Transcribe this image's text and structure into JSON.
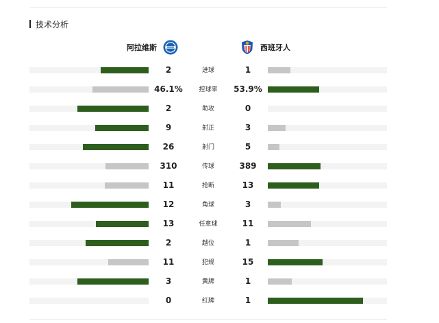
{
  "section": {
    "title": "技术分析"
  },
  "home": {
    "name": "阿拉维斯",
    "crest": "alaves-crest-icon",
    "color": "#1a63b5"
  },
  "away": {
    "name": "西班牙人",
    "crest": "espanyol-crest-icon",
    "color": "#1f56b0"
  },
  "colors": {
    "leader_bar": "#2e5e1e",
    "trailer_bar": "#c6c6c6",
    "track": "#f3f3f3"
  },
  "stats": [
    {
      "label": "进球",
      "home": "2",
      "away": "1",
      "home_share": 0.4,
      "away_share": 0.19
    },
    {
      "label": "控球率",
      "home": "46.1%",
      "away": "53.9%",
      "home_share": 0.47,
      "away_share": 0.43
    },
    {
      "label": "助攻",
      "home": "2",
      "away": "0",
      "home_share": 0.6,
      "away_share": 0.0
    },
    {
      "label": "射正",
      "home": "9",
      "away": "3",
      "home_share": 0.45,
      "away_share": 0.15
    },
    {
      "label": "射门",
      "home": "26",
      "away": "5",
      "home_share": 0.55,
      "away_share": 0.1
    },
    {
      "label": "传球",
      "home": "310",
      "away": "389",
      "home_share": 0.36,
      "away_share": 0.44
    },
    {
      "label": "抢断",
      "home": "11",
      "away": "13",
      "home_share": 0.37,
      "away_share": 0.43
    },
    {
      "label": "角球",
      "home": "12",
      "away": "3",
      "home_share": 0.65,
      "away_share": 0.11
    },
    {
      "label": "任意球",
      "home": "13",
      "away": "11",
      "home_share": 0.44,
      "away_share": 0.36
    },
    {
      "label": "越位",
      "home": "2",
      "away": "1",
      "home_share": 0.53,
      "away_share": 0.26
    },
    {
      "label": "犯规",
      "home": "11",
      "away": "15",
      "home_share": 0.34,
      "away_share": 0.46
    },
    {
      "label": "黄牌",
      "home": "3",
      "away": "1",
      "home_share": 0.6,
      "away_share": 0.2
    },
    {
      "label": "红牌",
      "home": "0",
      "away": "1",
      "home_share": 0.0,
      "away_share": 0.8
    }
  ]
}
